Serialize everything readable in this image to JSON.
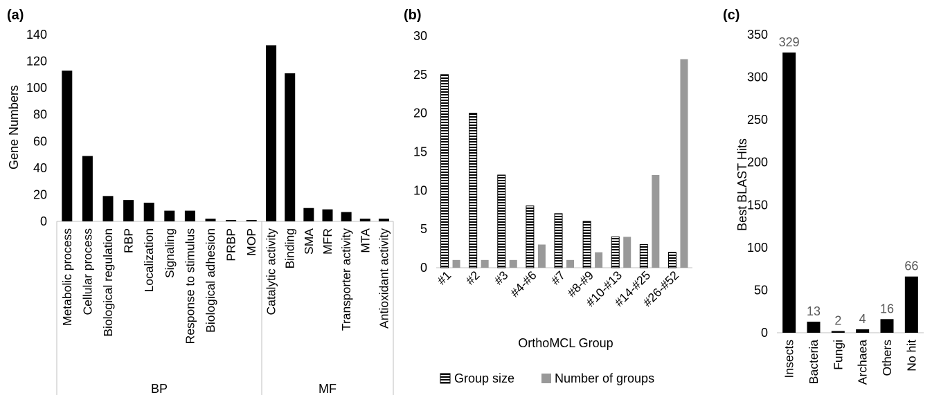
{
  "chart_data": [
    {
      "panel_label": "(a)",
      "type": "bar",
      "xlabel": "",
      "ylabel": "Gene Numbers",
      "ylim": [
        0,
        140
      ],
      "yticks": [
        0,
        20,
        40,
        60,
        80,
        100,
        120,
        140
      ],
      "grid": false,
      "groups": [
        {
          "name": "BP",
          "categories": [
            "Metabolic process",
            "Cellular process",
            "Biological regulation",
            "RBP",
            "Localization",
            "Signaling",
            "Response to stimulus",
            "Biological adhesion",
            "PRBP",
            "MOP"
          ],
          "values": [
            113,
            49,
            19,
            16,
            14,
            8,
            8,
            2,
            1,
            1
          ]
        },
        {
          "name": "MF",
          "categories": [
            "Catalytic activity",
            "Binding",
            "SMA",
            "MFR",
            "Transporter activity",
            "MTA",
            "Antioxidant activity"
          ],
          "values": [
            132,
            111,
            10,
            9,
            7,
            2,
            2
          ]
        }
      ],
      "color": "#000000"
    },
    {
      "panel_label": "(b)",
      "type": "bar",
      "xlabel": "OrthoMCL Group",
      "ylabel": "",
      "ylim": [
        0,
        30
      ],
      "yticks": [
        0,
        5,
        10,
        15,
        20,
        25,
        30
      ],
      "grid": false,
      "categories": [
        "#1",
        "#2",
        "#3",
        "#4-#6",
        "#7",
        "#8-#9",
        "#10-#13",
        "#14-#25",
        "#26-#52"
      ],
      "series": [
        {
          "name": "Group size",
          "values": [
            25,
            20,
            12,
            8,
            7,
            6,
            4,
            3,
            2
          ],
          "pattern": "horizontal-stripes",
          "color": "#000000"
        },
        {
          "name": "Number of groups",
          "values": [
            1,
            1,
            1,
            3,
            1,
            2,
            4,
            12,
            27
          ],
          "color": "#999999"
        }
      ],
      "legend_position": "bottom"
    },
    {
      "panel_label": "(c)",
      "type": "bar",
      "xlabel": "",
      "ylabel": "Best BLAST Hits",
      "ylim": [
        0,
        350
      ],
      "yticks": [
        0,
        50,
        100,
        150,
        200,
        250,
        300,
        350
      ],
      "grid": false,
      "categories": [
        "Insects",
        "Bacteria",
        "Fungi",
        "Archaea",
        "Others",
        "No hit"
      ],
      "values": [
        329,
        13,
        2,
        4,
        16,
        66
      ],
      "data_labels": [
        "329",
        "13",
        "2",
        "4",
        "16",
        "66"
      ],
      "color": "#000000"
    }
  ]
}
